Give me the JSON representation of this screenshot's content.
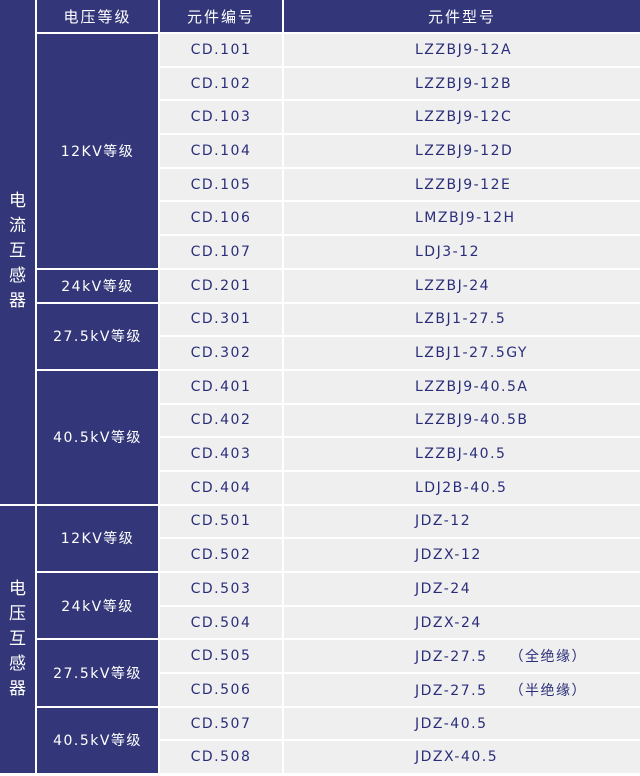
{
  "header": {
    "level": "电压等级",
    "code": "元件编号",
    "model": "元件型号"
  },
  "colors": {
    "header_bg": "#333779",
    "cell_bg": "#efefef",
    "text": "#2a2e7a"
  },
  "groups": [
    {
      "name": "电\n流\n互\n感\n器",
      "levels": [
        {
          "label": "12KV等级",
          "items": [
            {
              "code": "CD.101",
              "model": "LZZBJ9-12A"
            },
            {
              "code": "CD.102",
              "model": "LZZBJ9-12B"
            },
            {
              "code": "CD.103",
              "model": "LZZBJ9-12C"
            },
            {
              "code": "CD.104",
              "model": "LZZBJ9-12D"
            },
            {
              "code": "CD.105",
              "model": "LZZBJ9-12E"
            },
            {
              "code": "CD.106",
              "model": "LMZBJ9-12H"
            },
            {
              "code": "CD.107",
              "model": "LDJ3-12"
            }
          ]
        },
        {
          "label": "24kV等级",
          "items": [
            {
              "code": "CD.201",
              "model": "LZZBJ-24"
            }
          ]
        },
        {
          "label": "27.5kV等级",
          "items": [
            {
              "code": "CD.301",
              "model": "LZBJ1-27.5"
            },
            {
              "code": "CD.302",
              "model": "LZBJ1-27.5GY"
            }
          ]
        },
        {
          "label": "40.5kV等级",
          "items": [
            {
              "code": "CD.401",
              "model": "LZZBJ9-40.5A"
            },
            {
              "code": "CD.402",
              "model": "LZZBJ9-40.5B"
            },
            {
              "code": "CD.403",
              "model": "LZZBJ-40.5"
            },
            {
              "code": "CD.404",
              "model": "LDJ2B-40.5"
            }
          ]
        }
      ]
    },
    {
      "name": "电\n压\n互\n感\n器",
      "levels": [
        {
          "label": "12KV等级",
          "items": [
            {
              "code": "CD.501",
              "model": "JDZ-12"
            },
            {
              "code": "CD.502",
              "model": "JDZX-12"
            }
          ]
        },
        {
          "label": "24kV等级",
          "items": [
            {
              "code": "CD.503",
              "model": "JDZ-24"
            },
            {
              "code": "CD.504",
              "model": "JDZX-24"
            }
          ]
        },
        {
          "label": "27.5kV等级",
          "items": [
            {
              "code": "CD.505",
              "model": "JDZ-27.5",
              "note": "（全绝缘）"
            },
            {
              "code": "CD.506",
              "model": "JDZ-27.5",
              "note": "（半绝缘）"
            }
          ]
        },
        {
          "label": "40.5kV等级",
          "items": [
            {
              "code": "CD.507",
              "model": "JDZ-40.5"
            },
            {
              "code": "CD.508",
              "model": "JDZX-40.5"
            }
          ]
        }
      ]
    }
  ]
}
